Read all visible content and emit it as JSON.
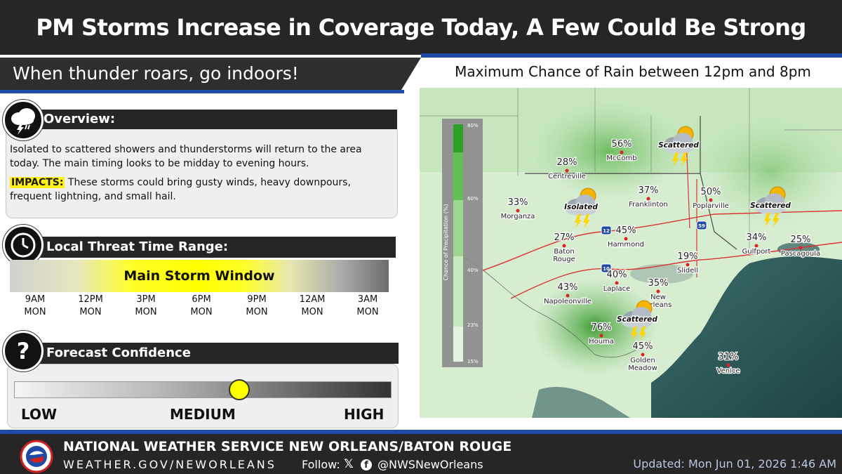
{
  "header": {
    "title": "PM Storms Increase in Coverage Today, A Few Could Be Strong",
    "subtitle": "When thunder roars, go indoors!"
  },
  "overview": {
    "heading": "Overview:",
    "icon": "thunderstorm-cloud-icon",
    "text": "Isolated to scattered showers and thunderstorms will return to the area today. The main timing looks to be midday to evening hours.",
    "impacts_label": "IMPACTS:",
    "impacts_text": " These storms could bring gusty winds, heavy downpours, frequent lightning,  and small hail."
  },
  "threat": {
    "heading": "Local Threat Time Range:",
    "icon": "clock-icon",
    "window_label": "Main Storm Window",
    "times": [
      {
        "time": "9AM",
        "day": "MON"
      },
      {
        "time": "12PM",
        "day": "MON"
      },
      {
        "time": "3PM",
        "day": "MON"
      },
      {
        "time": "6PM",
        "day": "MON"
      },
      {
        "time": "9PM",
        "day": "MON"
      },
      {
        "time": "12AM",
        "day": "MON"
      },
      {
        "time": "3AM",
        "day": "MON"
      }
    ]
  },
  "confidence": {
    "heading": "Forecast Confidence",
    "icon": "question-mark-icon",
    "labels": {
      "low": "LOW",
      "medium": "MEDIUM",
      "high": "HIGH"
    },
    "level": 0.6
  },
  "map": {
    "title": "Maximum Chance of Rain between 12pm and 8pm",
    "legend_title": "Chance of Precipitation (%)",
    "legend_ticks": [
      "80%",
      "60%",
      "40%",
      "23%",
      "15%"
    ],
    "points": [
      {
        "value": "56%",
        "name": "McComb"
      },
      {
        "value": "28%",
        "name": "Centreville"
      },
      {
        "value": "37%",
        "name": "Franklinton"
      },
      {
        "value": "50%",
        "name": "Poplarville"
      },
      {
        "value": "33%",
        "name": "Morganza"
      },
      {
        "value": "27%",
        "name": "Baton Rouge"
      },
      {
        "value": "45%",
        "name": "Hammond"
      },
      {
        "value": "19%",
        "name": "Slidell"
      },
      {
        "value": "34%",
        "name": "Gulfport"
      },
      {
        "value": "25%",
        "name": "Pascagoula"
      },
      {
        "value": "40%",
        "name": "Laplace"
      },
      {
        "value": "35%",
        "name": "New Orleans"
      },
      {
        "value": "43%",
        "name": "Napoleonville"
      },
      {
        "value": "76%",
        "name": "Houma"
      },
      {
        "value": "45%",
        "name": "Golden Meadow"
      },
      {
        "value": "31%",
        "name": "Venice"
      }
    ],
    "badges": [
      "Scattered",
      "Isolated",
      "Scattered",
      "Scattered"
    ],
    "interstates": [
      "12",
      "10",
      "59"
    ],
    "colors": {
      "land_light": "#d6edd0",
      "land_mid": "#9ed494",
      "land_dark": "#4caa3d",
      "water": "#2f5a5e"
    }
  },
  "footer": {
    "office": "NATIONAL WEATHER SERVICE NEW ORLEANS/BATON ROUGE",
    "site": "WEATHER.GOV/NEWORLEANS",
    "follow": "Follow:",
    "x_icon": "x-logo-icon",
    "fb_icon": "facebook-icon",
    "handle": "@NWSNewOrleans",
    "updated": "Updated: Mon Jun 01, 2026 1:46 AM"
  },
  "colors": {
    "header_bg": "#262626",
    "accent_blue": "#1f4aa6",
    "highlight_yellow": "#ffff00"
  }
}
